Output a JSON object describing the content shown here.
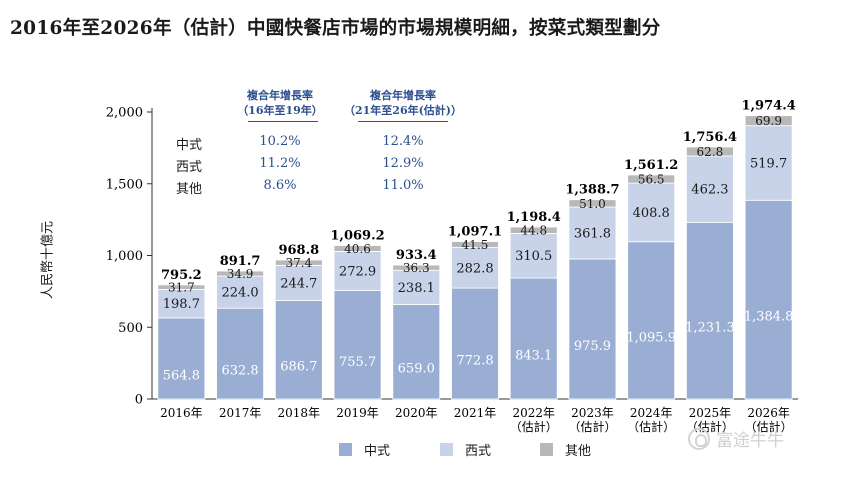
{
  "title": "2016年至2026年（估計）中國快餐店市場的市場規模明細，按菜式類型劃分",
  "cagr_table": {
    "headers": [
      {
        "line1": "複合年增長率",
        "line2": "（16年至19年）"
      },
      {
        "line1": "複合年增長率",
        "line2": "（21年至26年(估計)）"
      }
    ],
    "rows": [
      {
        "name": "中式",
        "v1": "10.2%",
        "v2": "12.4%"
      },
      {
        "name": "西式",
        "v1": "11.2%",
        "v2": "12.9%"
      },
      {
        "name": "其他",
        "v1": "8.6%",
        "v2": "11.0%"
      }
    ]
  },
  "legend": [
    {
      "label": "中式",
      "color": "#9aaed3"
    },
    {
      "label": "西式",
      "color": "#c8d3ea"
    },
    {
      "label": "其他",
      "color": "#b8b8b8"
    }
  ],
  "watermark": "富途牛牛",
  "chart_data": {
    "type": "bar",
    "stacked": true,
    "ylabel": "人民幣十億元",
    "ylim": [
      0,
      2000
    ],
    "yticks": [
      "0",
      "500",
      "1,000",
      "1,500",
      "2,000"
    ],
    "ytick_values": [
      0,
      500,
      1000,
      1500,
      2000
    ],
    "categories": [
      [
        "2016年"
      ],
      [
        "2017年"
      ],
      [
        "2018年"
      ],
      [
        "2019年"
      ],
      [
        "2020年"
      ],
      [
        "2021年"
      ],
      [
        "2022年",
        "（估計）"
      ],
      [
        "2023年",
        "（估計）"
      ],
      [
        "2024年",
        "（估計）"
      ],
      [
        "2025年",
        "（估計）"
      ],
      [
        "2026年",
        "（估計）"
      ]
    ],
    "series": [
      {
        "name": "中式",
        "color": "#9aaed3",
        "values": [
          564.8,
          632.8,
          686.7,
          755.7,
          659.0,
          772.8,
          843.1,
          975.9,
          1095.9,
          1231.3,
          1384.8
        ],
        "labels": [
          "564.8",
          "632.8",
          "686.7",
          "755.7",
          "659.0",
          "772.8",
          "843.1",
          "975.9",
          "1,095.9",
          "1,231.3",
          "1,384.8"
        ]
      },
      {
        "name": "西式",
        "color": "#c8d3ea",
        "values": [
          198.7,
          224.0,
          244.7,
          272.9,
          238.1,
          282.8,
          310.5,
          361.8,
          408.8,
          462.3,
          519.7
        ],
        "labels": [
          "198.7",
          "224.0",
          "244.7",
          "272.9",
          "238.1",
          "282.8",
          "310.5",
          "361.8",
          "408.8",
          "462.3",
          "519.7"
        ]
      },
      {
        "name": "其他",
        "color": "#b8b8b8",
        "values": [
          31.7,
          34.9,
          37.4,
          40.6,
          36.3,
          41.5,
          44.8,
          51.0,
          56.5,
          62.8,
          69.9
        ],
        "labels": [
          "31.7",
          "34.9",
          "37.4",
          "40.6",
          "36.3",
          "41.5",
          "44.8",
          "51.0",
          "56.5",
          "62.8",
          "69.9"
        ]
      }
    ],
    "totals": [
      795.2,
      891.7,
      968.8,
      1069.2,
      933.4,
      1097.1,
      1198.4,
      1388.7,
      1561.2,
      1756.4,
      1974.4
    ],
    "total_labels": [
      "795.2",
      "891.7",
      "968.8",
      "1,069.2",
      "933.4",
      "1,097.1",
      "1,198.4",
      "1,388.7",
      "1,561.2",
      "1,756.4",
      "1,974.4"
    ],
    "legend_position": "bottom",
    "grid": false
  }
}
